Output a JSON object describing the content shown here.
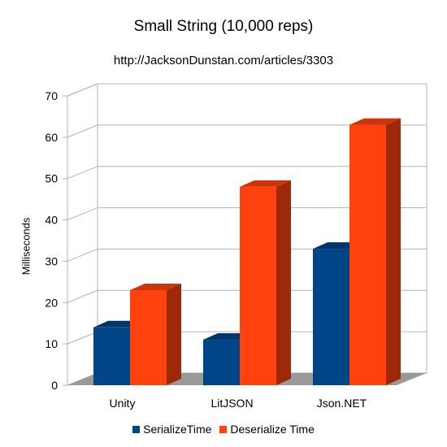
{
  "chart_data": {
    "type": "bar",
    "title": "Small String (10,000 reps)",
    "subtitle": "http://JacksonDunstan.com/articles/3303",
    "xlabel": "",
    "ylabel": "Milliseconds",
    "ylim": [
      0,
      70
    ],
    "yticks": [
      0,
      10,
      20,
      30,
      40,
      50,
      60,
      70
    ],
    "categories": [
      "Unity",
      "LitJSON",
      "Json.NET"
    ],
    "series": [
      {
        "name": "SerializeTime",
        "values": [
          14,
          11,
          33
        ],
        "color": "#004586"
      },
      {
        "name": "Deserialize Time",
        "values": [
          23,
          48,
          63
        ],
        "color": "#ff420e"
      }
    ],
    "grid": true,
    "legend": "bottom",
    "style": "3d-columns"
  }
}
